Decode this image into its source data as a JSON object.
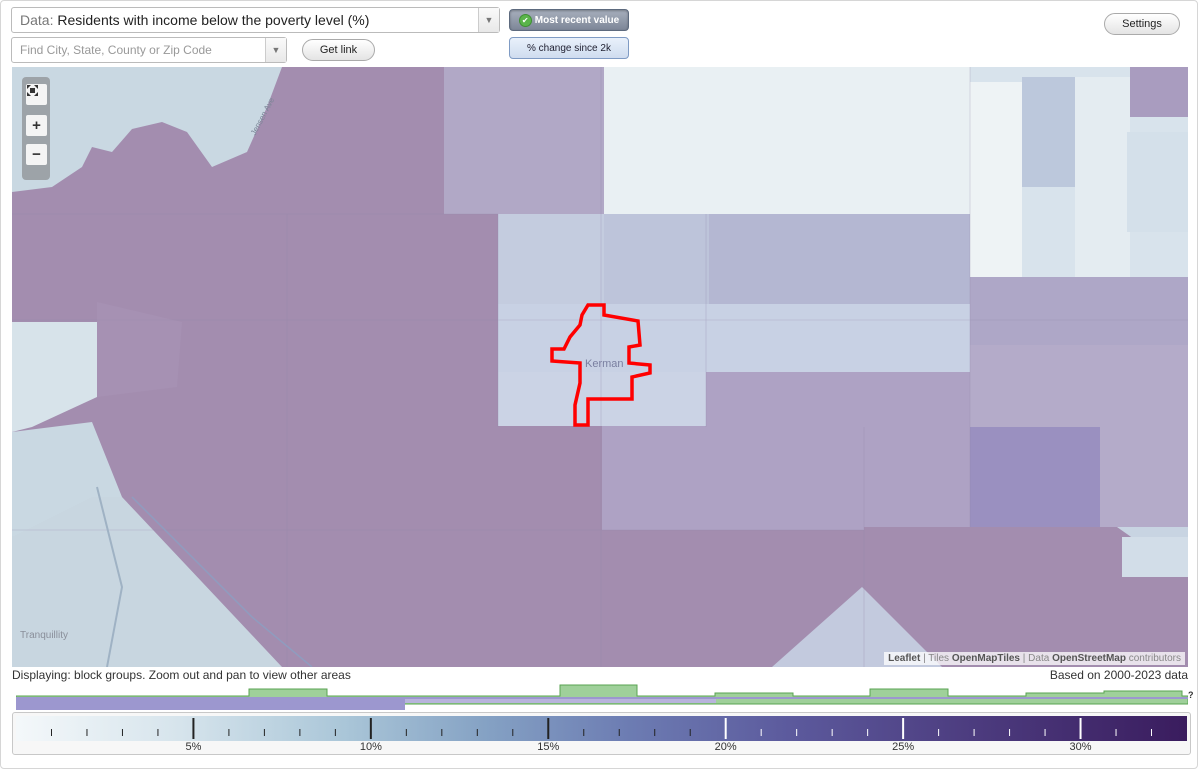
{
  "controls": {
    "data_prefix": "Data:",
    "data_value": "Residents with income below the poverty level (%)",
    "search_placeholder": "Find City, State, County or Zip Code",
    "get_link_label": "Get link",
    "most_recent_label": "Most recent value",
    "change_label": "% change since 2k",
    "settings_label": "Settings"
  },
  "map": {
    "place_label": "Kerman",
    "tranquillity_label": "Tranquillity",
    "road_label": "Jensen Ave",
    "zoom_in_symbol": "+",
    "zoom_out_symbol": "−",
    "fit_icon": "fullscreen-icon",
    "attribution": {
      "leaflet": "Leaflet",
      "sep1": " | Tiles ",
      "tiles": "OpenMapTiles",
      "sep2": " | Data ",
      "data": "OpenStreetMap",
      "suffix": " contributors"
    },
    "colors": {
      "high": "#a38daf",
      "mid": "#b9b2cf",
      "lowmid": "#c8d1e4",
      "low": "#dde8ee",
      "verylow": "#eef3f5",
      "highlight": "#ff0000"
    }
  },
  "status": {
    "displaying": "Displaying: block groups. Zoom out and pan to view other areas",
    "based_on": "Based on 2000-2023 data",
    "help": "?"
  },
  "legend": {
    "min": 0,
    "max": 33,
    "labels": [
      "5%",
      "10%",
      "15%",
      "20%",
      "25%",
      "30%"
    ],
    "label_values": [
      5,
      10,
      15,
      20,
      25,
      30
    ]
  }
}
